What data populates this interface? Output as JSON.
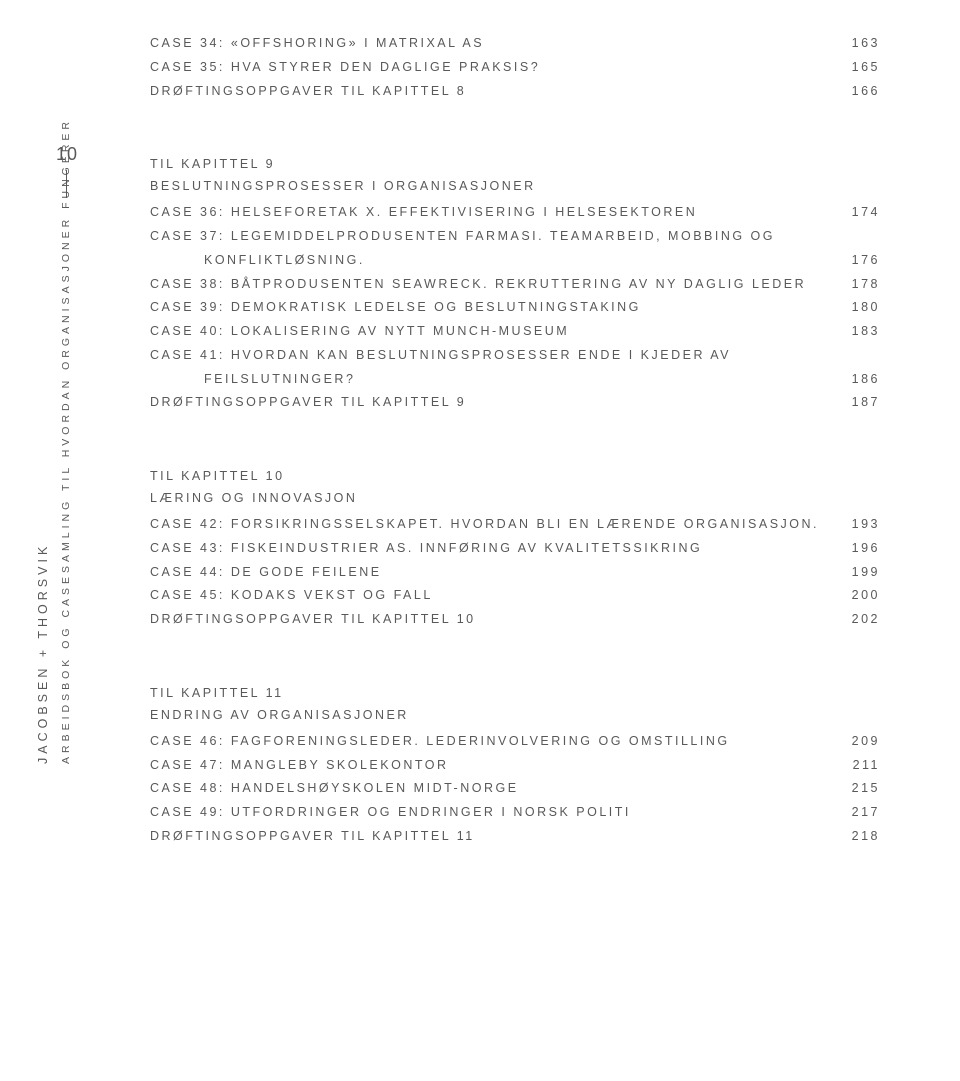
{
  "page_number": "10",
  "sidebar": {
    "line1": "JACOBSEN + THORSVIK",
    "line2": "ARBEIDSBOK OG CASESAMLING TIL HVORDAN ORGANISASJONER FUNGERER"
  },
  "top_block": {
    "rows": [
      {
        "label": "CASE 34: «OFFSHORING» I MATRIXAL AS",
        "page": "163"
      },
      {
        "label": "CASE 35: HVA STYRER DEN DAGLIGE PRAKSIS?",
        "page": "165"
      },
      {
        "label": "DRØFTINGSOPPGAVER TIL KAPITTEL 8",
        "page": "166"
      }
    ]
  },
  "ch9": {
    "title": "TIL KAPITTEL 9",
    "subtitle": "BESLUTNINGSPROSESSER I ORGANISASJONER",
    "rows": [
      {
        "label": "CASE 36: HELSEFORETAK X. EFFEKTIVISERING I HELSESEKTOREN",
        "page": "174"
      },
      {
        "label": "CASE 37: LEGEMIDDELPRODUSENTEN FARMASI. TEAMARBEID, MOBBING OG",
        "page": "",
        "nodots": true
      },
      {
        "label": "KONFLIKTLØSNING.",
        "page": "176",
        "indent": true
      },
      {
        "label": "CASE 38: BÅTPRODUSENTEN SEAWRECK. REKRUTTERING AV NY DAGLIG LEDER",
        "page": "178"
      },
      {
        "label": "CASE 39: DEMOKRATISK LEDELSE OG BESLUTNINGSTAKING",
        "page": "180"
      },
      {
        "label": "CASE 40: LOKALISERING AV NYTT MUNCH-MUSEUM",
        "page": "183"
      },
      {
        "label": "CASE 41: HVORDAN KAN BESLUTNINGSPROSESSER ENDE I KJEDER AV",
        "page": "",
        "nodots": true
      },
      {
        "label": "FEILSLUTNINGER?",
        "page": "186",
        "indent": true
      },
      {
        "label": "DRØFTINGSOPPGAVER TIL KAPITTEL 9",
        "page": "187"
      }
    ]
  },
  "ch10": {
    "title": "TIL KAPITTEL 10",
    "subtitle": "LÆRING OG INNOVASJON",
    "rows": [
      {
        "label": "CASE 42: FORSIKRINGSSELSKAPET. HVORDAN BLI EN LÆRENDE ORGANISASJON.",
        "page": "193"
      },
      {
        "label": "CASE 43: FISKEINDUSTRIER AS. INNFØRING AV KVALITETSSIKRING",
        "page": "196"
      },
      {
        "label": "CASE 44: DE GODE FEILENE",
        "page": "199"
      },
      {
        "label": "CASE 45: KODAKS VEKST OG FALL",
        "page": "200"
      },
      {
        "label": "DRØFTINGSOPPGAVER TIL KAPITTEL 10",
        "page": "202"
      }
    ]
  },
  "ch11": {
    "title": "TIL KAPITTEL 11",
    "subtitle": "ENDRING AV ORGANISASJONER",
    "rows": [
      {
        "label": "CASE 46: FAGFORENINGSLEDER. LEDERINVOLVERING OG OMSTILLING",
        "page": "209"
      },
      {
        "label": "CASE 47: MANGLEBY SKOLEKONTOR",
        "page": "211"
      },
      {
        "label": "CASE 48: HANDELSHØYSKOLEN MIDT-NORGE",
        "page": "215"
      },
      {
        "label": "CASE 49: UTFORDRINGER OG ENDRINGER I NORSK POLITI",
        "page": "217"
      },
      {
        "label": "DRØFTINGSOPPGAVER TIL KAPITTEL 11",
        "page": "218"
      }
    ]
  },
  "colors": {
    "text": "#595959",
    "background": "#ffffff"
  }
}
